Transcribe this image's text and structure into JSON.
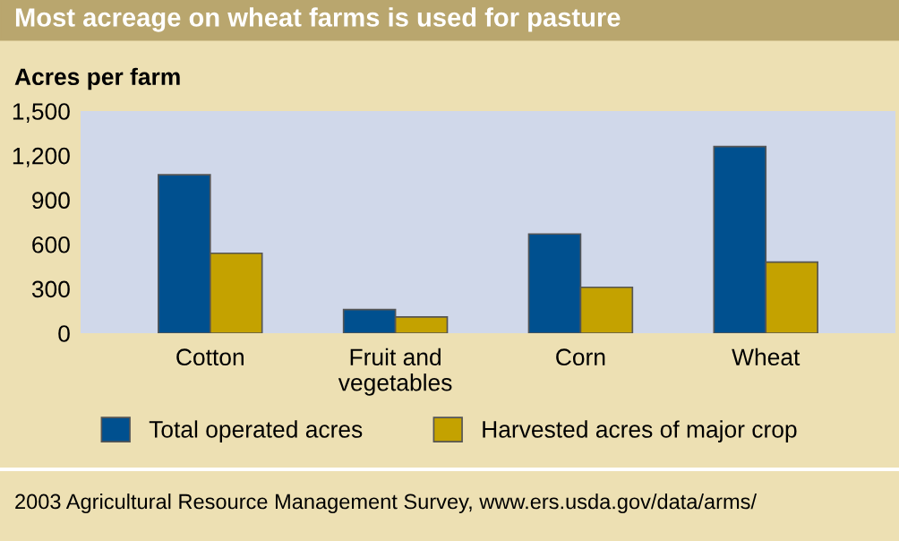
{
  "chart_data": {
    "type": "bar",
    "title": "Most acreage on wheat farms is used for pasture",
    "ylabel": "Acres per farm",
    "categories": [
      "Cotton",
      "Fruit and\nvegetables",
      "Corn",
      "Wheat"
    ],
    "series": [
      {
        "name": "Total operated acres",
        "color": "#00508f",
        "values": [
          1070,
          160,
          670,
          1260
        ]
      },
      {
        "name": "Harvested acres of major crop",
        "color": "#c4a200",
        "values": [
          540,
          110,
          310,
          480
        ]
      }
    ],
    "ylim": [
      0,
      1500
    ],
    "yticks": [
      {
        "value": 0,
        "label": "0"
      },
      {
        "value": 300,
        "label": "300"
      },
      {
        "value": 600,
        "label": "600"
      },
      {
        "value": 900,
        "label": "900"
      },
      {
        "value": 1200,
        "label": "1,200"
      },
      {
        "value": 1500,
        "label": "1,500"
      }
    ],
    "legend": "bottom",
    "grid": false,
    "annotations": [
      "2003 Agricultural Resource Management Survey, www.ers.usda.gov/data/arms/"
    ]
  }
}
